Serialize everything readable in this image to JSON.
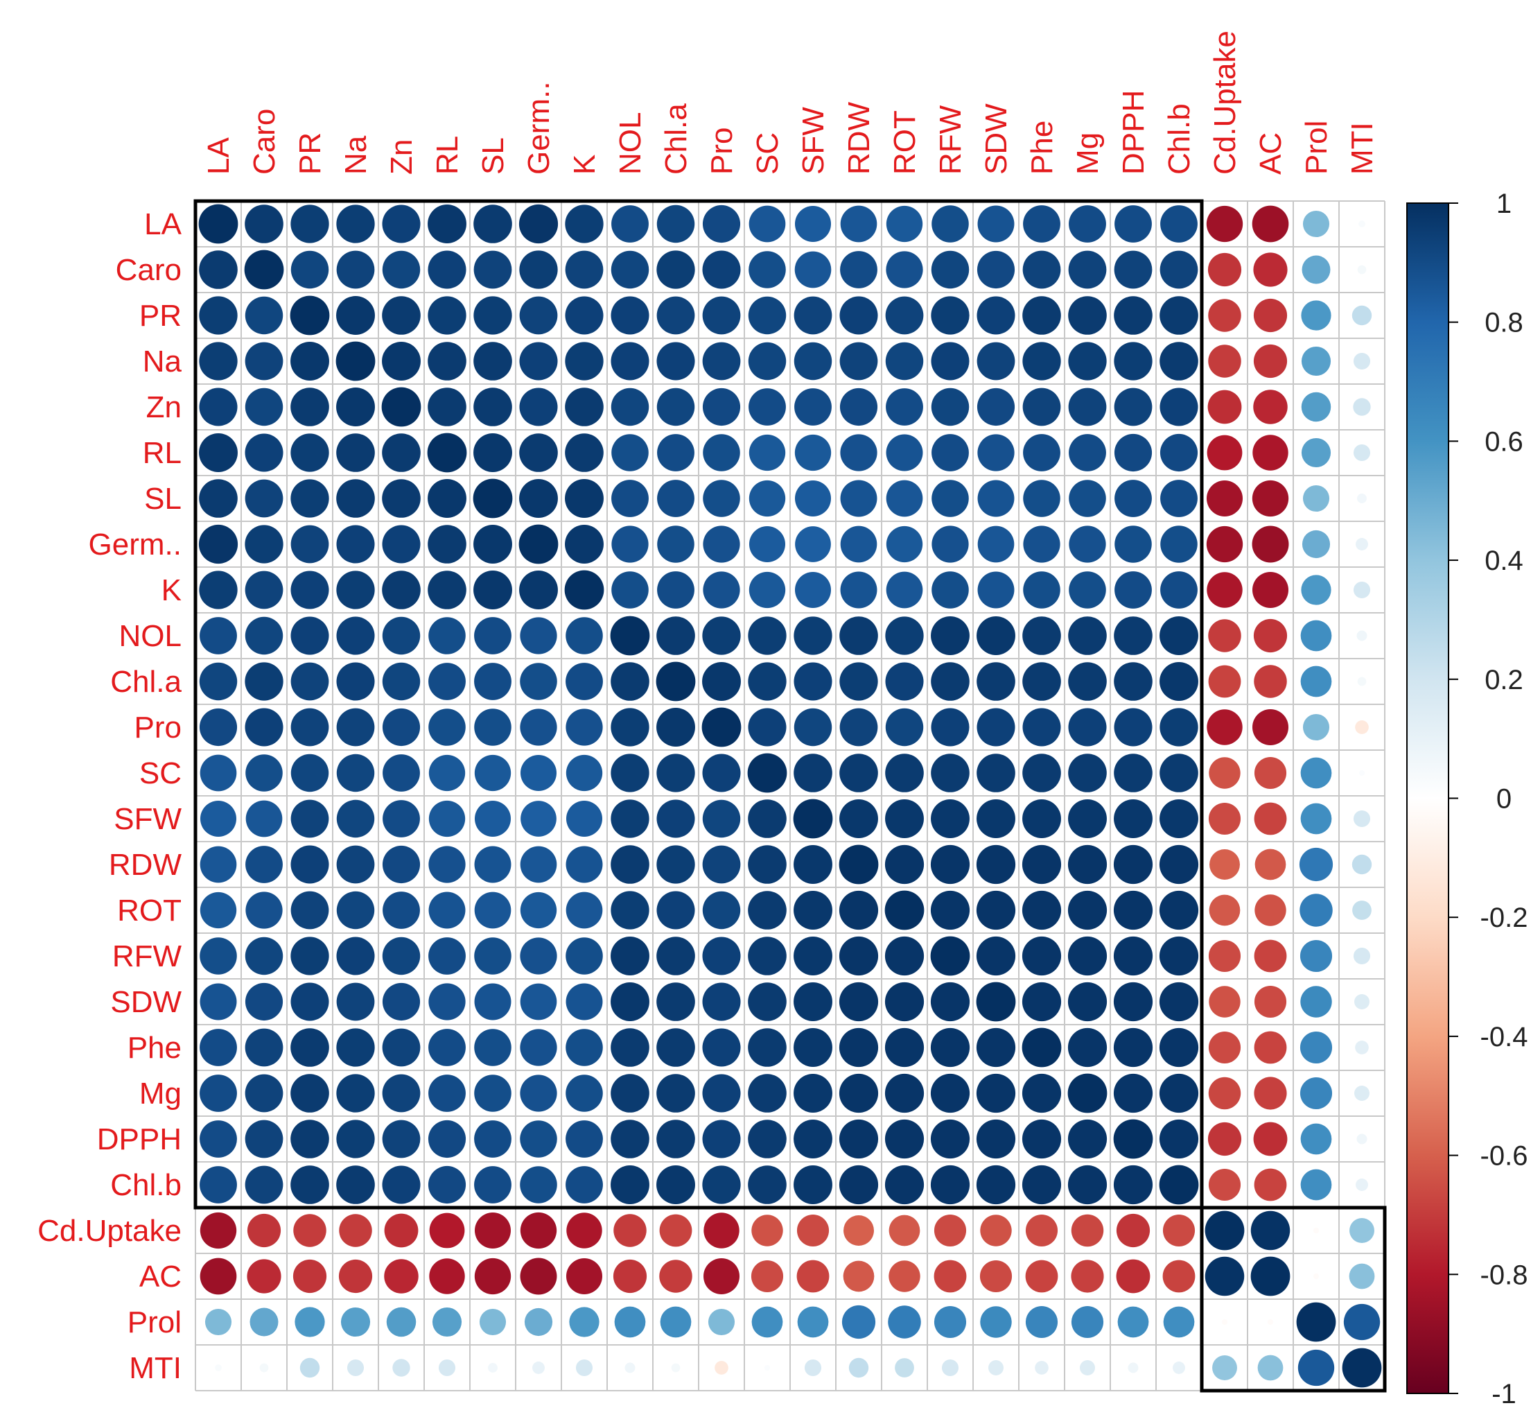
{
  "chart_data": {
    "type": "heatmap",
    "title": "",
    "variables": [
      "LA",
      "Caro",
      "PR",
      "Na",
      "Zn",
      "RL",
      "SL",
      "Germ..",
      "K",
      "NOL",
      "Chl.a",
      "Pro",
      "SC",
      "SFW",
      "RDW",
      "ROT",
      "RFW",
      "SDW",
      "Phe",
      "Mg",
      "DPPH",
      "Chl.b",
      "Cd.Uptake",
      "AC",
      "Prol",
      "MTI"
    ],
    "clusters": [
      {
        "start": 0,
        "size": 22
      },
      {
        "start": 22,
        "size": 4
      }
    ],
    "block_means": [
      [
        0.9,
        -0.75,
        0.55,
        0.05
      ],
      [
        -0.75,
        1.0,
        0.0,
        0.4
      ],
      [
        0.55,
        0.0,
        1.0,
        0.85
      ],
      [
        0.05,
        0.4,
        0.85,
        1.0
      ]
    ],
    "matrix": [
      [
        1.0,
        0.96,
        0.95,
        0.95,
        0.94,
        0.97,
        0.96,
        0.98,
        0.95,
        0.9,
        0.92,
        0.91,
        0.86,
        0.84,
        0.86,
        0.85,
        0.89,
        0.87,
        0.9,
        0.9,
        0.9,
        0.9,
        -0.85,
        -0.86,
        0.45,
        0.03
      ],
      [
        0.96,
        1.0,
        0.92,
        0.93,
        0.92,
        0.94,
        0.93,
        0.95,
        0.93,
        0.92,
        0.95,
        0.94,
        0.89,
        0.86,
        0.9,
        0.88,
        0.92,
        0.91,
        0.93,
        0.93,
        0.93,
        0.93,
        -0.72,
        -0.75,
        0.52,
        0.05
      ],
      [
        0.95,
        0.92,
        1.0,
        0.97,
        0.96,
        0.95,
        0.95,
        0.93,
        0.94,
        0.94,
        0.93,
        0.93,
        0.92,
        0.93,
        0.94,
        0.93,
        0.95,
        0.94,
        0.96,
        0.96,
        0.96,
        0.96,
        -0.7,
        -0.72,
        0.58,
        0.25
      ],
      [
        0.95,
        0.93,
        0.97,
        1.0,
        0.97,
        0.96,
        0.96,
        0.94,
        0.95,
        0.94,
        0.94,
        0.93,
        0.92,
        0.92,
        0.93,
        0.92,
        0.94,
        0.93,
        0.95,
        0.95,
        0.95,
        0.96,
        -0.7,
        -0.72,
        0.55,
        0.18
      ],
      [
        0.94,
        0.92,
        0.96,
        0.97,
        1.0,
        0.96,
        0.96,
        0.94,
        0.96,
        0.92,
        0.92,
        0.91,
        0.9,
        0.9,
        0.91,
        0.9,
        0.92,
        0.91,
        0.93,
        0.93,
        0.93,
        0.94,
        -0.74,
        -0.76,
        0.56,
        0.2
      ],
      [
        0.97,
        0.94,
        0.95,
        0.96,
        0.96,
        1.0,
        0.97,
        0.96,
        0.96,
        0.89,
        0.9,
        0.89,
        0.85,
        0.85,
        0.88,
        0.87,
        0.9,
        0.88,
        0.9,
        0.9,
        0.91,
        0.91,
        -0.8,
        -0.82,
        0.55,
        0.18
      ],
      [
        0.96,
        0.93,
        0.95,
        0.96,
        0.96,
        0.97,
        1.0,
        0.97,
        0.97,
        0.9,
        0.9,
        0.89,
        0.85,
        0.84,
        0.87,
        0.86,
        0.89,
        0.87,
        0.89,
        0.89,
        0.9,
        0.9,
        -0.84,
        -0.85,
        0.45,
        0.06
      ],
      [
        0.98,
        0.95,
        0.93,
        0.94,
        0.94,
        0.96,
        0.97,
        1.0,
        0.97,
        0.88,
        0.89,
        0.88,
        0.84,
        0.83,
        0.86,
        0.85,
        0.88,
        0.86,
        0.88,
        0.88,
        0.89,
        0.89,
        -0.85,
        -0.87,
        0.5,
        0.1
      ],
      [
        0.95,
        0.93,
        0.94,
        0.95,
        0.96,
        0.96,
        0.97,
        0.97,
        1.0,
        0.89,
        0.9,
        0.88,
        0.85,
        0.84,
        0.87,
        0.86,
        0.89,
        0.87,
        0.89,
        0.89,
        0.9,
        0.9,
        -0.82,
        -0.84,
        0.58,
        0.18
      ],
      [
        0.9,
        0.92,
        0.94,
        0.94,
        0.92,
        0.89,
        0.9,
        0.88,
        0.89,
        1.0,
        0.96,
        0.95,
        0.95,
        0.95,
        0.96,
        0.95,
        0.97,
        0.97,
        0.96,
        0.96,
        0.96,
        0.97,
        -0.7,
        -0.72,
        0.62,
        0.07
      ],
      [
        0.92,
        0.95,
        0.93,
        0.94,
        0.92,
        0.9,
        0.9,
        0.89,
        0.9,
        0.96,
        1.0,
        0.97,
        0.95,
        0.94,
        0.95,
        0.94,
        0.96,
        0.96,
        0.96,
        0.96,
        0.96,
        0.97,
        -0.68,
        -0.7,
        0.62,
        0.05
      ],
      [
        0.91,
        0.94,
        0.93,
        0.93,
        0.91,
        0.89,
        0.89,
        0.88,
        0.88,
        0.95,
        0.97,
        1.0,
        0.94,
        0.92,
        0.93,
        0.92,
        0.94,
        0.94,
        0.94,
        0.94,
        0.94,
        0.95,
        -0.82,
        -0.84,
        0.45,
        -0.12
      ],
      [
        0.86,
        0.89,
        0.92,
        0.92,
        0.9,
        0.85,
        0.85,
        0.84,
        0.85,
        0.95,
        0.95,
        0.94,
        1.0,
        0.96,
        0.96,
        0.96,
        0.96,
        0.96,
        0.96,
        0.96,
        0.96,
        0.96,
        -0.64,
        -0.66,
        0.62,
        0.02
      ],
      [
        0.84,
        0.86,
        0.93,
        0.92,
        0.9,
        0.85,
        0.84,
        0.83,
        0.84,
        0.95,
        0.94,
        0.92,
        0.96,
        1.0,
        0.97,
        0.97,
        0.97,
        0.97,
        0.97,
        0.97,
        0.97,
        0.97,
        -0.66,
        -0.68,
        0.62,
        0.18
      ],
      [
        0.86,
        0.9,
        0.94,
        0.93,
        0.91,
        0.88,
        0.87,
        0.86,
        0.87,
        0.96,
        0.95,
        0.93,
        0.96,
        0.97,
        1.0,
        0.98,
        0.98,
        0.98,
        0.98,
        0.98,
        0.98,
        0.98,
        -0.6,
        -0.62,
        0.72,
        0.25
      ],
      [
        0.85,
        0.88,
        0.93,
        0.92,
        0.9,
        0.87,
        0.86,
        0.85,
        0.86,
        0.95,
        0.94,
        0.92,
        0.96,
        0.97,
        0.98,
        1.0,
        0.98,
        0.98,
        0.98,
        0.98,
        0.98,
        0.98,
        -0.62,
        -0.64,
        0.7,
        0.24
      ],
      [
        0.89,
        0.92,
        0.95,
        0.94,
        0.92,
        0.9,
        0.89,
        0.88,
        0.89,
        0.97,
        0.96,
        0.94,
        0.96,
        0.97,
        0.98,
        0.98,
        1.0,
        0.98,
        0.98,
        0.98,
        0.98,
        0.98,
        -0.66,
        -0.68,
        0.66,
        0.18
      ],
      [
        0.87,
        0.91,
        0.94,
        0.93,
        0.91,
        0.88,
        0.87,
        0.86,
        0.87,
        0.97,
        0.96,
        0.94,
        0.96,
        0.97,
        0.98,
        0.98,
        0.98,
        1.0,
        0.98,
        0.98,
        0.98,
        0.98,
        -0.64,
        -0.66,
        0.64,
        0.15
      ],
      [
        0.9,
        0.93,
        0.96,
        0.95,
        0.93,
        0.9,
        0.89,
        0.88,
        0.89,
        0.96,
        0.96,
        0.94,
        0.96,
        0.97,
        0.98,
        0.98,
        0.98,
        0.98,
        1.0,
        0.98,
        0.98,
        0.98,
        -0.66,
        -0.68,
        0.66,
        0.12
      ],
      [
        0.9,
        0.93,
        0.96,
        0.95,
        0.93,
        0.9,
        0.89,
        0.88,
        0.89,
        0.96,
        0.96,
        0.94,
        0.96,
        0.97,
        0.98,
        0.98,
        0.98,
        0.98,
        0.98,
        1.0,
        0.98,
        0.98,
        -0.67,
        -0.69,
        0.66,
        0.15
      ],
      [
        0.9,
        0.93,
        0.96,
        0.95,
        0.93,
        0.91,
        0.9,
        0.89,
        0.9,
        0.96,
        0.96,
        0.94,
        0.96,
        0.97,
        0.98,
        0.98,
        0.98,
        0.98,
        0.98,
        0.98,
        1.0,
        0.98,
        -0.72,
        -0.74,
        0.62,
        0.07
      ],
      [
        0.9,
        0.93,
        0.96,
        0.96,
        0.94,
        0.91,
        0.9,
        0.89,
        0.9,
        0.97,
        0.97,
        0.95,
        0.96,
        0.97,
        0.98,
        0.98,
        0.98,
        0.98,
        0.98,
        0.98,
        0.98,
        1.0,
        -0.66,
        -0.68,
        0.62,
        0.1
      ],
      [
        -0.85,
        -0.72,
        -0.7,
        -0.7,
        -0.74,
        -0.8,
        -0.84,
        -0.85,
        -0.82,
        -0.7,
        -0.68,
        -0.82,
        -0.64,
        -0.66,
        -0.6,
        -0.62,
        -0.66,
        -0.64,
        -0.66,
        -0.67,
        -0.72,
        -0.66,
        1.0,
        0.99,
        -0.02,
        0.4
      ],
      [
        -0.86,
        -0.75,
        -0.72,
        -0.72,
        -0.76,
        -0.82,
        -0.85,
        -0.87,
        -0.84,
        -0.72,
        -0.7,
        -0.84,
        -0.66,
        -0.68,
        -0.62,
        -0.64,
        -0.68,
        -0.66,
        -0.68,
        -0.69,
        -0.74,
        -0.68,
        0.99,
        1.0,
        -0.02,
        0.42
      ],
      [
        0.45,
        0.52,
        0.58,
        0.55,
        0.56,
        0.55,
        0.45,
        0.5,
        0.58,
        0.62,
        0.62,
        0.45,
        0.62,
        0.62,
        0.72,
        0.7,
        0.66,
        0.64,
        0.66,
        0.66,
        0.62,
        0.62,
        -0.02,
        -0.02,
        1.0,
        0.85
      ],
      [
        0.03,
        0.05,
        0.25,
        0.18,
        0.2,
        0.18,
        0.06,
        0.1,
        0.18,
        0.07,
        0.05,
        -0.12,
        0.02,
        0.18,
        0.25,
        0.24,
        0.18,
        0.15,
        0.12,
        0.15,
        0.07,
        0.1,
        0.4,
        0.42,
        0.85,
        1.0
      ]
    ],
    "colorbar": {
      "range": [
        -1,
        1
      ],
      "ticks": [
        "1",
        "0.8",
        "0.6",
        "0.4",
        "0.2",
        "0",
        "-0.2",
        "-0.4",
        "-0.6",
        "-0.8",
        "-1"
      ],
      "colors": [
        "#67001f",
        "#b2182b",
        "#d6604d",
        "#f4a582",
        "#fddbc7",
        "#ffffff",
        "#d1e5f0",
        "#92c5de",
        "#4393c3",
        "#2166ac",
        "#053061"
      ]
    },
    "label_color": "#e31a1c",
    "grid_color": "#c8c8c8"
  }
}
